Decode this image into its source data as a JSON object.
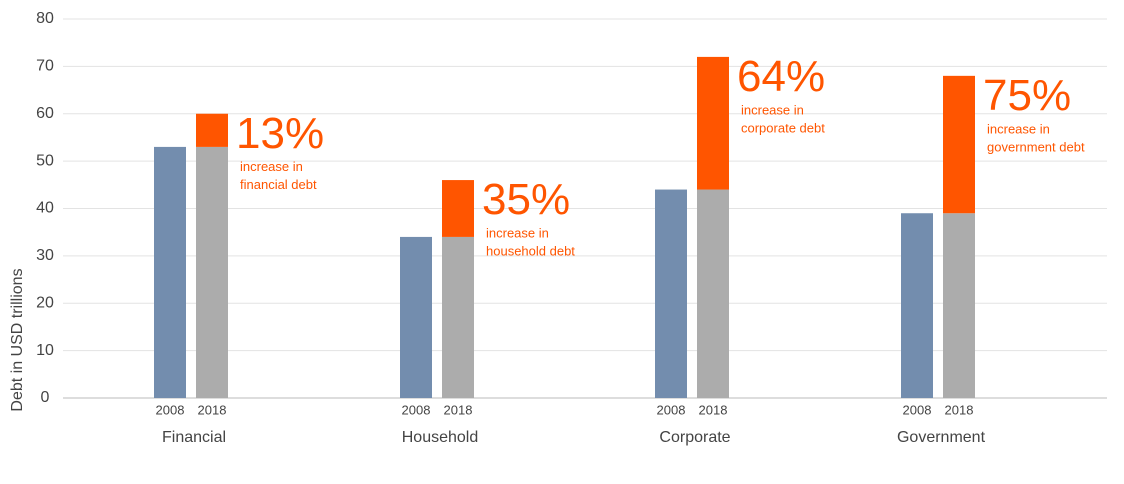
{
  "chart_data": {
    "type": "bar",
    "y_label": "Debt in USD trillions",
    "categories": [
      "Financial",
      "Household",
      "Corporate",
      "Government"
    ],
    "series": [
      {
        "name": "2008",
        "color": "#738dae",
        "values": [
          53,
          34,
          44,
          39
        ]
      },
      {
        "name": "2018",
        "color": "#acacac",
        "values": [
          53,
          34,
          44,
          39
        ],
        "increase": [
          7,
          12,
          28,
          29
        ],
        "increase_color": "#ff5500"
      }
    ],
    "annotations": [
      {
        "value": 13,
        "label": "13%",
        "lines": [
          "increase in",
          "financial debt"
        ]
      },
      {
        "value": 35,
        "label": "35%",
        "lines": [
          "increase in",
          "household debt"
        ]
      },
      {
        "value": 64,
        "label": "64%",
        "lines": [
          "increase in",
          "corporate debt"
        ]
      },
      {
        "value": 75,
        "label": "75%",
        "lines": [
          "increase in",
          "government debt"
        ]
      }
    ],
    "ylim": [
      0,
      80
    ],
    "yticks": [
      0,
      10,
      20,
      30,
      40,
      50,
      60,
      70,
      80
    ],
    "grid": true
  }
}
